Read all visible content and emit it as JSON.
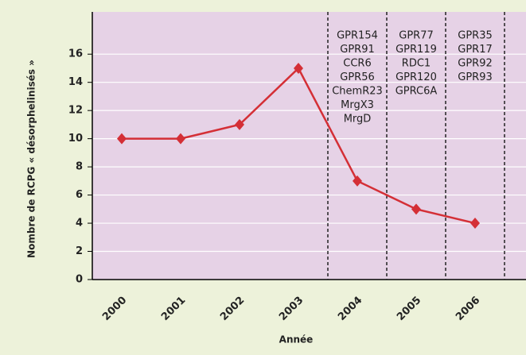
{
  "chart_data": {
    "type": "line",
    "y_label": "Nombre de RCPG « désorphelinisés »",
    "x_label": "Année",
    "categories": [
      "2000",
      "2001",
      "2002",
      "2003",
      "2004",
      "2005",
      "2006"
    ],
    "series": [
      {
        "color": "#d42f36",
        "values": [
          10,
          10,
          11,
          15,
          7,
          5,
          4
        ]
      }
    ],
    "ylim": [
      0,
      19
    ],
    "yticks": [
      0,
      2,
      4,
      6,
      8,
      10,
      12,
      14,
      16
    ],
    "grid": true,
    "annotations": [
      {
        "x": "2004",
        "lines": [
          "GPR154",
          "GPR91",
          "CCR6",
          "GPR56",
          "ChemR23",
          "MrgX3",
          "MrgD"
        ]
      },
      {
        "x": "2005",
        "lines": [
          "GPR77",
          "GPR119",
          "RDC1",
          "GPR120",
          "GPRC6A"
        ]
      },
      {
        "x": "2006",
        "lines": [
          "GPR35",
          "GPR17",
          "GPR92",
          "GPR93"
        ]
      }
    ]
  }
}
